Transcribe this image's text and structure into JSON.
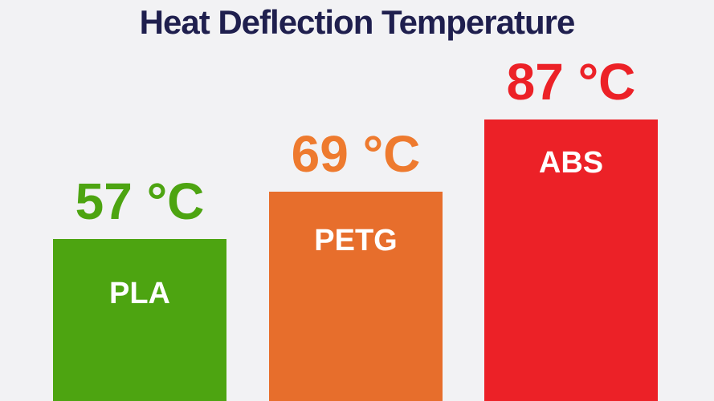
{
  "chart_data": {
    "type": "bar",
    "title": "Heat Deflection Temperature",
    "xlabel": "",
    "ylabel": "",
    "unit": "°C",
    "categories": [
      "PLA",
      "PETG",
      "ABS"
    ],
    "values": [
      57,
      69,
      87
    ],
    "grid": false,
    "legend": false,
    "background_color": "#f2f2f4",
    "title_color": "#1f1f4e",
    "bar_text_color": "#ffffff",
    "bars": [
      {
        "category": "PLA",
        "value": 57,
        "value_label": "57 °C",
        "color": "#4da411",
        "value_label_color": "#4da411"
      },
      {
        "category": "PETG",
        "value": 69,
        "value_label": "69 °C",
        "color": "#e76e2c",
        "value_label_color": "#ee7a2e"
      },
      {
        "category": "ABS",
        "value": 87,
        "value_label": "87 °C",
        "color": "#ec2127",
        "value_label_color": "#ec2127"
      }
    ]
  }
}
